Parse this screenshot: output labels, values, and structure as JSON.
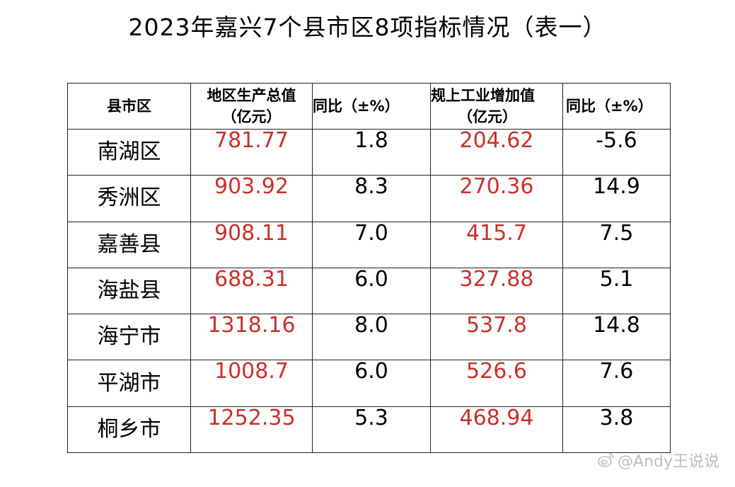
{
  "title": "2023年嘉兴7个县市区8项指标情况（表一）",
  "table": {
    "headers": {
      "region": "县市区",
      "gdp_line1": "地区生产总值",
      "gdp_line2": "（亿元）",
      "gdp_growth": "同比（±%）",
      "industry_line1": "规上工业增加值",
      "industry_line2": "（亿元）",
      "industry_growth": "同比（±%）"
    },
    "rows": [
      {
        "region": "南湖区",
        "gdp": "781.77",
        "gdp_growth": "1.8",
        "industry": "204.62",
        "industry_growth": "-5.6"
      },
      {
        "region": "秀洲区",
        "gdp": "903.92",
        "gdp_growth": "8.3",
        "industry": "270.36",
        "industry_growth": "14.9"
      },
      {
        "region": "嘉善县",
        "gdp": "908.11",
        "gdp_growth": "7.0",
        "industry": "415.7",
        "industry_growth": "7.5"
      },
      {
        "region": "海盐县",
        "gdp": "688.31",
        "gdp_growth": "6.0",
        "industry": "327.88",
        "industry_growth": "5.1"
      },
      {
        "region": "海宁市",
        "gdp": "1318.16",
        "gdp_growth": "8.0",
        "industry": "537.8",
        "industry_growth": "14.8"
      },
      {
        "region": "平湖市",
        "gdp": "1008.7",
        "gdp_growth": "6.0",
        "industry": "526.6",
        "industry_growth": "7.6"
      },
      {
        "region": "桐乡市",
        "gdp": "1252.35",
        "gdp_growth": "5.3",
        "industry": "468.94",
        "industry_growth": "3.8"
      }
    ]
  },
  "watermark": {
    "text": "@Andy王说说",
    "icon": "weibo-logo-icon"
  },
  "colors": {
    "value_red": "#c9302c",
    "border": "#222222",
    "watermark": "#bdbdbd"
  }
}
